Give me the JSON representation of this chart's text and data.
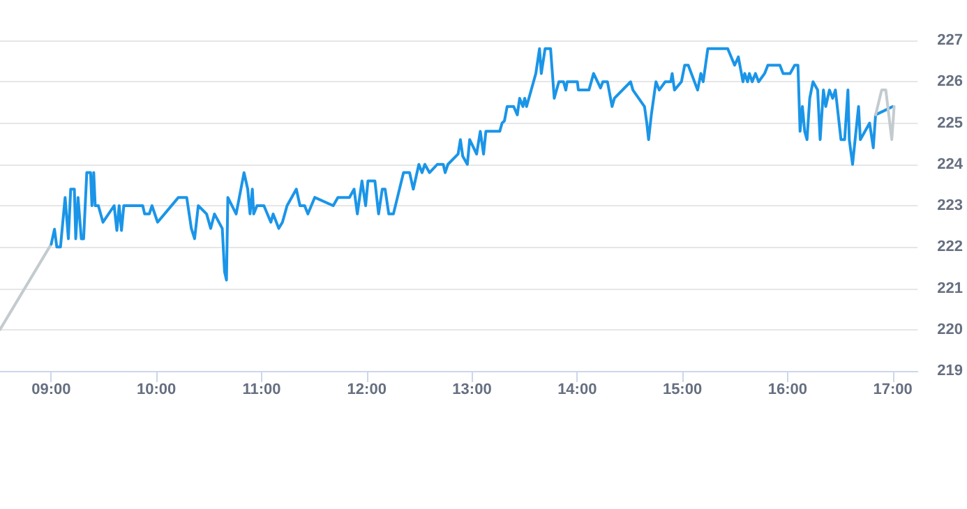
{
  "chart_data": {
    "type": "line",
    "xlim": [
      8.513,
      17.237
    ],
    "ylim": [
      219,
      227
    ],
    "yticks": [
      219,
      220,
      221,
      222,
      223,
      224,
      225,
      226,
      227
    ],
    "xticks": [
      {
        "value": 9,
        "label": "09:00"
      },
      {
        "value": 10,
        "label": "10:00"
      },
      {
        "value": 11,
        "label": "11:00"
      },
      {
        "value": 12,
        "label": "12:00"
      },
      {
        "value": 13,
        "label": "13:00"
      },
      {
        "value": 14,
        "label": "14:00"
      },
      {
        "value": 15,
        "label": "15:00"
      },
      {
        "value": 16,
        "label": "16:00"
      },
      {
        "value": 17,
        "label": "17:00"
      }
    ],
    "grid": "y",
    "marker": "none",
    "line_style": "solid",
    "series": [
      {
        "color": "#c3cbcf",
        "x": [
          8.513,
          9.0
        ],
        "values": [
          220.0,
          222.07
        ]
      },
      {
        "color": "#1a95e8",
        "x": [
          9.0,
          9.031,
          9.053,
          9.088,
          9.132,
          9.163,
          9.185,
          9.22,
          9.233,
          9.255,
          9.286,
          9.308,
          9.338,
          9.374,
          9.387,
          9.404,
          9.418,
          9.448,
          9.492,
          9.598,
          9.624,
          9.646,
          9.668,
          9.69,
          9.87,
          9.888,
          9.932,
          9.958,
          10.011,
          10.209,
          10.288,
          10.332,
          10.363,
          10.398,
          10.477,
          10.516,
          10.552,
          10.626,
          10.648,
          10.666,
          10.679,
          10.758,
          10.833,
          10.868,
          10.89,
          10.912,
          10.925,
          10.956,
          11.022,
          11.088,
          11.11,
          11.163,
          11.198,
          11.242,
          11.33,
          11.365,
          11.409,
          11.44,
          11.505,
          11.681,
          11.725,
          11.835,
          11.879,
          11.91,
          11.954,
          11.989,
          12.011,
          12.077,
          12.112,
          12.147,
          12.174,
          12.209,
          12.253,
          12.349,
          12.407,
          12.442,
          12.495,
          12.525,
          12.552,
          12.596,
          12.67,
          12.727,
          12.745,
          12.771,
          12.868,
          12.89,
          12.912,
          12.956,
          12.978,
          13.044,
          13.079,
          13.11,
          13.132,
          13.264,
          13.286,
          13.308,
          13.334,
          13.396,
          13.431,
          13.453,
          13.484,
          13.501,
          13.519,
          13.585,
          13.607,
          13.642,
          13.659,
          13.695,
          13.747,
          13.782,
          13.826,
          13.87,
          13.892,
          13.905,
          14.002,
          14.011,
          14.112,
          14.156,
          14.222,
          14.244,
          14.288,
          14.332,
          14.354,
          14.508,
          14.53,
          14.64,
          14.662,
          14.679,
          14.705,
          14.749,
          14.78,
          14.837,
          14.89,
          14.903,
          14.925,
          14.991,
          15.022,
          15.056,
          15.145,
          15.176,
          15.198,
          15.242,
          15.299,
          15.431,
          15.497,
          15.532,
          15.576,
          15.593,
          15.62,
          15.637,
          15.664,
          15.695,
          15.725,
          15.782,
          15.813,
          15.927,
          15.958,
          16.024,
          16.068,
          16.099,
          16.119,
          16.141,
          16.163,
          16.185,
          16.211,
          16.242,
          16.286,
          16.31,
          16.341,
          16.363,
          16.398,
          16.429,
          16.455,
          16.508,
          16.543,
          16.574,
          16.587,
          16.618,
          16.675,
          16.692,
          16.78,
          16.815,
          16.837,
          17.0
        ],
        "values": [
          222.07,
          222.43,
          222.0,
          222.0,
          223.2,
          222.2,
          223.4,
          223.4,
          222.2,
          223.2,
          222.2,
          222.2,
          223.8,
          223.8,
          223.0,
          223.8,
          223.0,
          223.0,
          222.6,
          223.0,
          222.4,
          223.0,
          222.4,
          223.0,
          223.0,
          222.8,
          222.8,
          223.0,
          222.6,
          223.2,
          223.2,
          222.45,
          222.2,
          223.0,
          222.8,
          222.45,
          222.8,
          222.45,
          221.4,
          221.2,
          223.2,
          222.8,
          223.8,
          223.4,
          222.8,
          223.4,
          222.8,
          223.0,
          223.0,
          222.6,
          222.8,
          222.45,
          222.6,
          223.0,
          223.4,
          223.0,
          223.0,
          222.8,
          223.2,
          223.0,
          223.2,
          223.2,
          223.4,
          222.8,
          223.6,
          223.0,
          223.6,
          223.6,
          222.8,
          223.4,
          223.4,
          222.8,
          222.8,
          223.8,
          223.8,
          223.4,
          224.0,
          223.8,
          224.0,
          223.8,
          224.0,
          224.0,
          223.8,
          224.0,
          224.25,
          224.6,
          224.2,
          224.0,
          224.6,
          224.25,
          224.8,
          224.25,
          224.8,
          224.8,
          225.0,
          225.05,
          225.4,
          225.4,
          225.2,
          225.6,
          225.4,
          225.6,
          225.4,
          226.0,
          226.2,
          226.8,
          226.2,
          226.8,
          226.8,
          225.6,
          226.0,
          226.0,
          225.8,
          226.0,
          226.0,
          225.8,
          225.8,
          226.2,
          225.85,
          226.0,
          226.0,
          225.4,
          225.6,
          226.0,
          225.8,
          225.4,
          225.0,
          224.6,
          225.2,
          226.0,
          225.8,
          226.0,
          226.0,
          226.2,
          225.8,
          226.0,
          226.4,
          226.4,
          225.8,
          226.2,
          226.0,
          226.8,
          226.8,
          226.8,
          226.4,
          226.6,
          226.0,
          226.2,
          226.0,
          226.2,
          226.0,
          226.2,
          226.0,
          226.2,
          226.4,
          226.4,
          226.2,
          226.2,
          226.4,
          226.4,
          224.8,
          225.4,
          224.8,
          224.6,
          225.6,
          226.0,
          225.8,
          224.6,
          225.8,
          225.4,
          225.8,
          225.6,
          225.8,
          224.6,
          224.6,
          225.8,
          224.6,
          224.0,
          225.4,
          224.6,
          225.0,
          224.4,
          225.2,
          225.4
        ]
      },
      {
        "color": "#c3cbcf",
        "x": [
          16.837,
          16.895,
          16.934,
          16.991,
          17.013
        ],
        "values": [
          225.2,
          225.8,
          225.8,
          224.6,
          225.4
        ]
      }
    ]
  }
}
